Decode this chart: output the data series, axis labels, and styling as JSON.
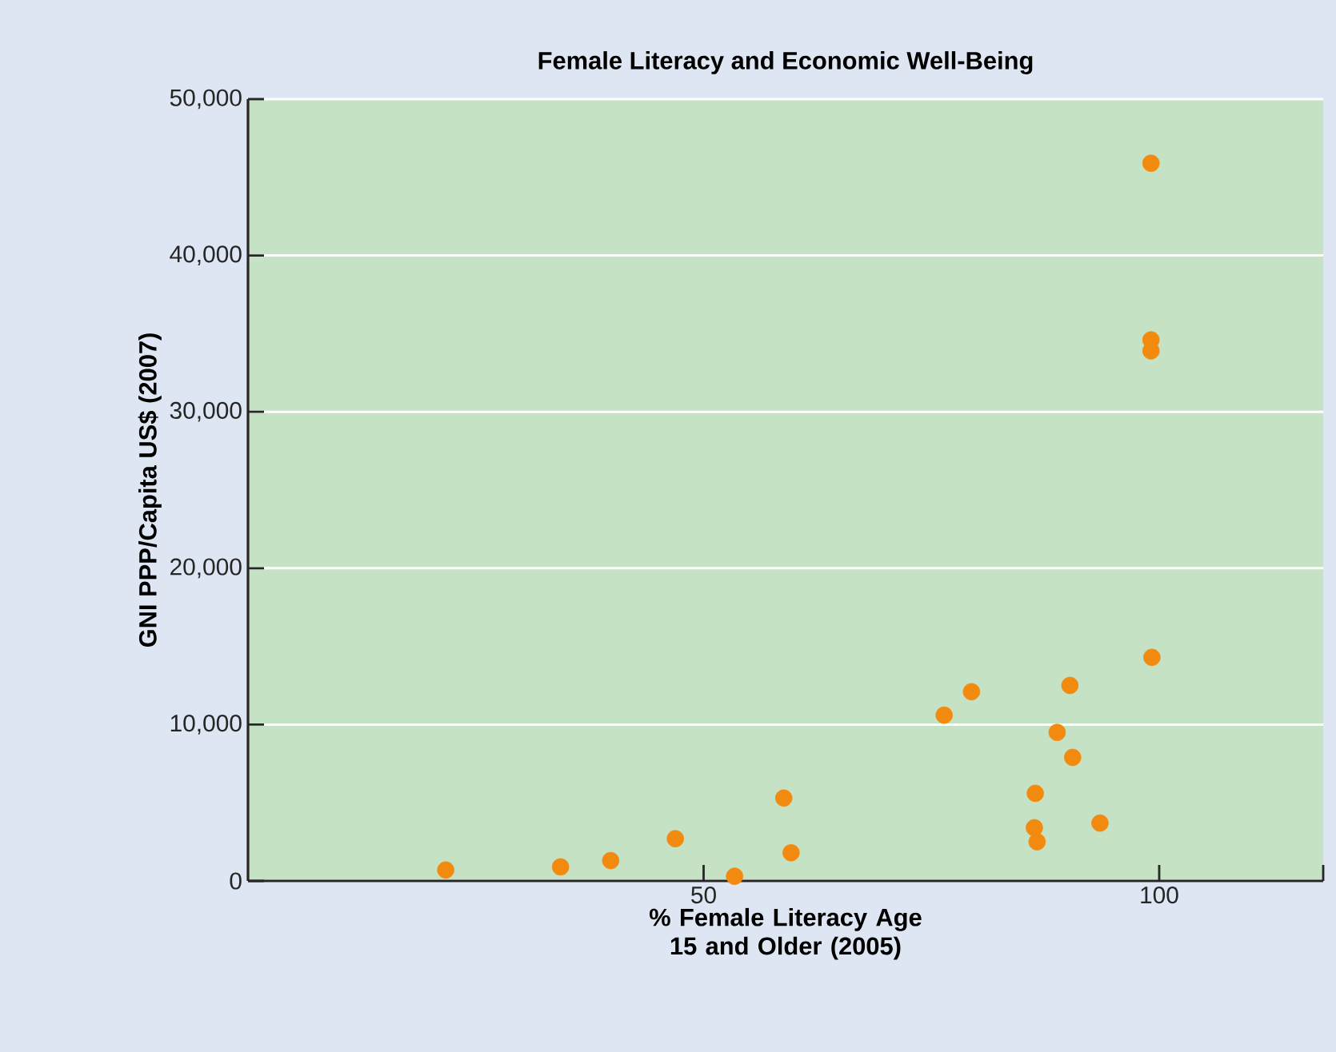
{
  "chart_data": {
    "type": "scatter",
    "title": "Female Literacy and Economic Well-Being",
    "xlabel": "% Female Literacy Age 15 and Older (2005)",
    "ylabel": "GNI PPP/Capita US$ (2007)",
    "series": [
      {
        "color": "#f28a0f",
        "x": [
          21.7,
          34.3,
          39.8,
          46.9,
          53.4,
          58.8,
          59.6,
          76.4,
          79.4,
          86.4,
          86.3,
          86.6,
          88.8,
          90.2,
          90.5,
          93.5,
          99.2,
          99.1,
          99.1,
          99.1
        ],
        "values": [
          700,
          900,
          1300,
          2700,
          300,
          5300,
          1800,
          10600,
          12100,
          5600,
          3400,
          2500,
          9500,
          12500,
          7900,
          3700,
          14300,
          45900,
          34600,
          33900
        ]
      }
    ],
    "xlim": [
      0,
      118
    ],
    "xticks": [
      50,
      100,
      {
        "value": 118,
        "label": null
      }
    ],
    "ylim": [
      0,
      50000
    ],
    "yticks": [
      {
        "value": 0,
        "label": "0"
      },
      {
        "value": 10000,
        "label": "10,000"
      },
      {
        "value": 20000,
        "label": "20,000"
      },
      {
        "value": 30000,
        "label": "30,000"
      },
      {
        "value": 40000,
        "label": "40,000"
      },
      {
        "value": 50000,
        "label": "50,000"
      }
    ],
    "grid": "y",
    "marker": "circle"
  }
}
